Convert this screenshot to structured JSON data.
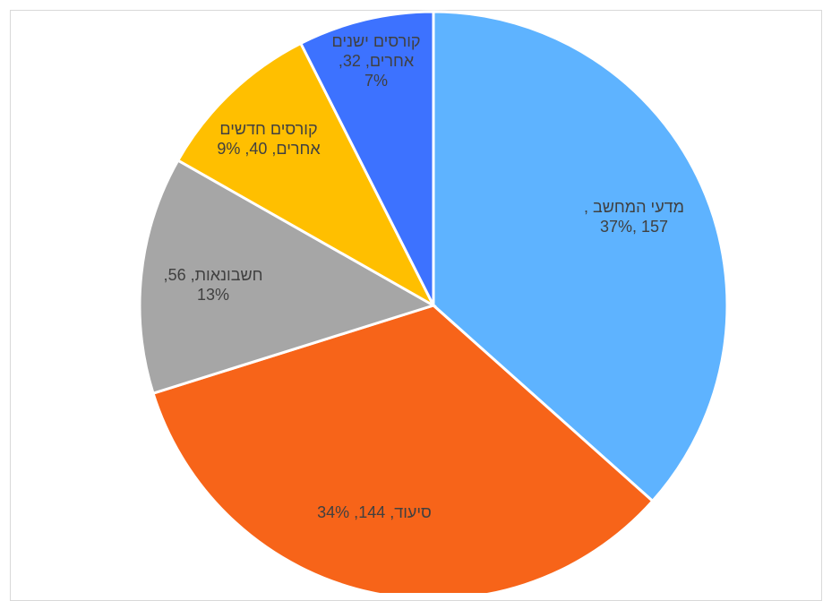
{
  "chart_data": {
    "type": "pie",
    "slices": [
      {
        "category": "מדעי המחשב",
        "value": 157,
        "percent": "37%",
        "color": "#5eb3ff",
        "label_lines": [
          "מדעי המחשב ,",
          "157 ,37%"
        ]
      },
      {
        "category": "סיעוד",
        "value": 144,
        "percent": "34%",
        "color": "#f76419",
        "label_lines": [
          "סיעוד, 144, 34%"
        ]
      },
      {
        "category": "חשבונאות",
        "value": 56,
        "percent": "13%",
        "color": "#a6a6a6",
        "label_lines": [
          "חשבונאות, 56,",
          "13%"
        ]
      },
      {
        "category": "קורסים חדשים אחרים",
        "value": 40,
        "percent": "9%",
        "color": "#ffbf00",
        "label_lines": [
          "קורסים חדשים",
          "אחרים, 40, 9%"
        ]
      },
      {
        "category": "קורסים ישנים אחרים",
        "value": 32,
        "percent": "7%",
        "color": "#3d72ff",
        "label_lines": [
          "קורסים ישנים",
          "אחרים, 32,",
          "7%"
        ]
      }
    ],
    "start": "12 o'clock",
    "direction": "clockwise",
    "legend": "none",
    "data_labels": "inside"
  }
}
